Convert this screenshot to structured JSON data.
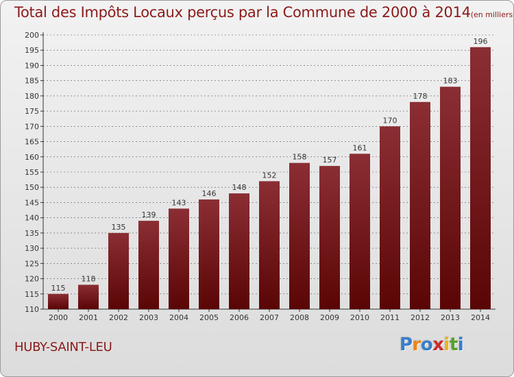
{
  "title": "Total des Impôts Locaux perçus par la Commune de 2000 à 2014",
  "title_unit": "(en milliers d'€)",
  "commune": "HUBY-SAINT-LEU",
  "logo": {
    "text": "Proxiti",
    "letters": [
      {
        "ch": "P",
        "color": "#3a7dc9"
      },
      {
        "ch": "r",
        "color": "#e8851a"
      },
      {
        "ch": "o",
        "color": "#3a7dc9"
      },
      {
        "ch": "x",
        "color": "#cc2a2a"
      },
      {
        "ch": "i",
        "color": "#e8b41a"
      },
      {
        "ch": "t",
        "color": "#55a032"
      },
      {
        "ch": "i",
        "color": "#3a7dc9"
      }
    ]
  },
  "colors": {
    "bar_top": "#8b2e34",
    "bar_bottom": "#5a0505",
    "text": "#8b1a1a",
    "grid": "#555555"
  },
  "chart_data": {
    "type": "bar",
    "categories": [
      "2000",
      "2001",
      "2002",
      "2003",
      "2004",
      "2005",
      "2006",
      "2007",
      "2008",
      "2009",
      "2010",
      "2011",
      "2012",
      "2013",
      "2014"
    ],
    "values": [
      115,
      118,
      135,
      139,
      143,
      146,
      148,
      152,
      158,
      157,
      161,
      170,
      178,
      183,
      196
    ],
    "ylim": [
      110,
      200
    ],
    "yticks": [
      110,
      115,
      120,
      125,
      130,
      135,
      140,
      145,
      150,
      155,
      160,
      165,
      170,
      175,
      180,
      185,
      190,
      195,
      200
    ],
    "grid": "dashed horizontal",
    "data_labels": true
  }
}
